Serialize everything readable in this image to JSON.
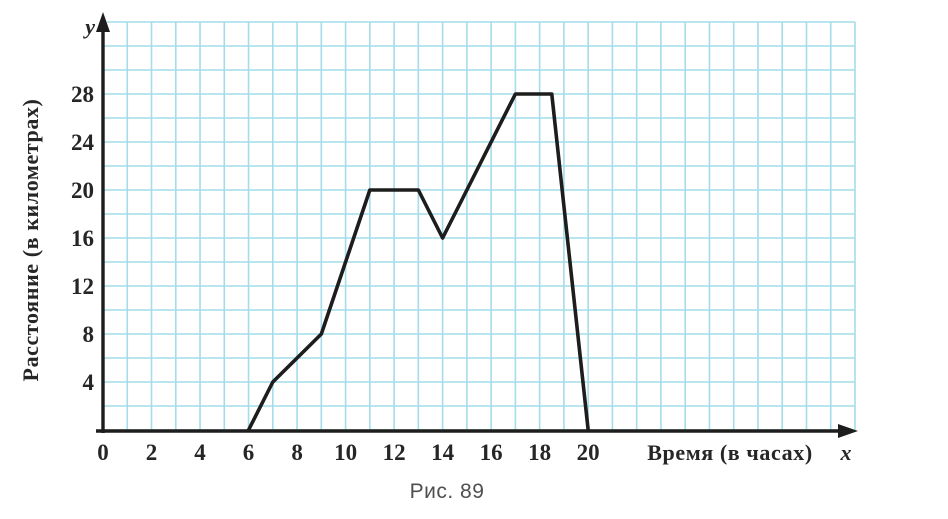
{
  "figure": {
    "caption": "Рис. 89"
  },
  "chart_data": {
    "type": "line",
    "title": "Рис. 89",
    "xlabel": "Время (в часах)",
    "ylabel": "Расстояние (в километрах)",
    "x_axis_symbol": "x",
    "y_axis_symbol": "y",
    "x_ticks": [
      0,
      2,
      4,
      6,
      8,
      10,
      12,
      14,
      16,
      18,
      20
    ],
    "y_ticks": [
      4,
      8,
      12,
      16,
      20,
      24,
      28
    ],
    "points": [
      [
        6,
        0
      ],
      [
        7,
        4
      ],
      [
        9,
        8
      ],
      [
        11,
        20
      ],
      [
        13,
        20
      ],
      [
        14,
        16
      ],
      [
        17,
        28
      ],
      [
        18.5,
        28
      ],
      [
        20,
        0
      ]
    ],
    "xlim": [
      0,
      31
    ],
    "ylim": [
      0,
      34
    ],
    "grid": true,
    "grid_step": {
      "x": 1,
      "y": 2
    },
    "legend_position": "none",
    "colors": {
      "line": "#1d1d1d",
      "grid": "#a4dce9",
      "axis": "#1d1d1d",
      "tick_text": "#262626",
      "caption": "#4f4f4f",
      "background": "#ffffff"
    }
  }
}
